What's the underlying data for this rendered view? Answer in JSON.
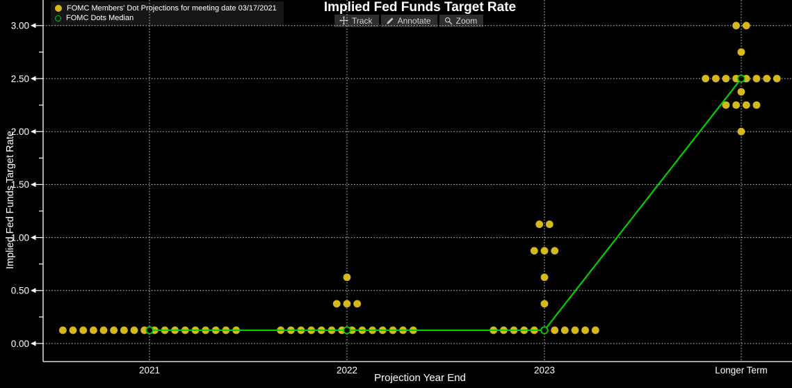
{
  "header": {
    "title": "Implied Fed Funds Target Rate",
    "toolbar": [
      {
        "icon": "track-icon",
        "label": "Track"
      },
      {
        "icon": "annotate-icon",
        "label": "Annotate"
      },
      {
        "icon": "zoom-icon",
        "label": "Zoom"
      }
    ]
  },
  "legend": {
    "items": [
      {
        "marker": "filled-yellow-dot",
        "label": "FOMC Members' Dot Projections for meeting date 03/17/2021"
      },
      {
        "marker": "open-green-circle",
        "label": "FOMC Dots Median"
      }
    ]
  },
  "axes": {
    "y": {
      "title": "Implied Fed Funds Target Rate"
    },
    "x": {
      "title": "Projection Year End"
    }
  },
  "colors": {
    "background": "#000000",
    "dot": "#d5b91c",
    "median": "#00d200",
    "grid": "#e3e3e3",
    "axis": "#ffffff",
    "legend_bg": "#161616",
    "toolbar_bg": "#2e2e2e",
    "toolbar_text": "#d2d2d2"
  },
  "chart_data": {
    "type": "scatter",
    "title": "Implied Fed Funds Target Rate",
    "xlabel": "Projection Year End",
    "ylabel": "Implied Fed Funds Target Rate",
    "categories": [
      "2021",
      "2022",
      "2023",
      "Longer Term"
    ],
    "ylim": [
      0,
      3
    ],
    "grid": true,
    "legend_position": "top-left",
    "y_ticks": [
      {
        "v": 0.0,
        "label": "0.00"
      },
      {
        "v": 0.5,
        "label": "0.50"
      },
      {
        "v": 1.0,
        "label": "1.00"
      },
      {
        "v": 1.5,
        "label": "1.50"
      },
      {
        "v": 2.0,
        "label": "2.00"
      },
      {
        "v": 2.5,
        "label": "2.50"
      },
      {
        "v": 3.0,
        "label": "3.00"
      }
    ],
    "series": [
      {
        "name": "FOMC Members' Dot Projections for meeting date 03/17/2021",
        "type": "dots",
        "color": "#d5b91c",
        "distributions": [
          {
            "category": "2021",
            "groups": [
              {
                "rate": 0.125,
                "count": 18
              }
            ]
          },
          {
            "category": "2022",
            "groups": [
              {
                "rate": 0.125,
                "count": 14
              },
              {
                "rate": 0.375,
                "count": 3
              },
              {
                "rate": 0.625,
                "count": 1
              }
            ]
          },
          {
            "category": "2023",
            "groups": [
              {
                "rate": 0.125,
                "count": 11
              },
              {
                "rate": 0.375,
                "count": 1
              },
              {
                "rate": 0.625,
                "count": 1
              },
              {
                "rate": 0.875,
                "count": 3
              },
              {
                "rate": 1.125,
                "count": 2
              }
            ]
          },
          {
            "category": "Longer Term",
            "groups": [
              {
                "rate": 2.0,
                "count": 1
              },
              {
                "rate": 2.25,
                "count": 4
              },
              {
                "rate": 2.375,
                "count": 1
              },
              {
                "rate": 2.5,
                "count": 8
              },
              {
                "rate": 2.75,
                "count": 1
              },
              {
                "rate": 3.0,
                "count": 2
              }
            ]
          }
        ]
      },
      {
        "name": "FOMC Dots Median",
        "type": "line",
        "color": "#00d200",
        "values": [
          0.125,
          0.125,
          0.125,
          2.5
        ]
      }
    ]
  }
}
